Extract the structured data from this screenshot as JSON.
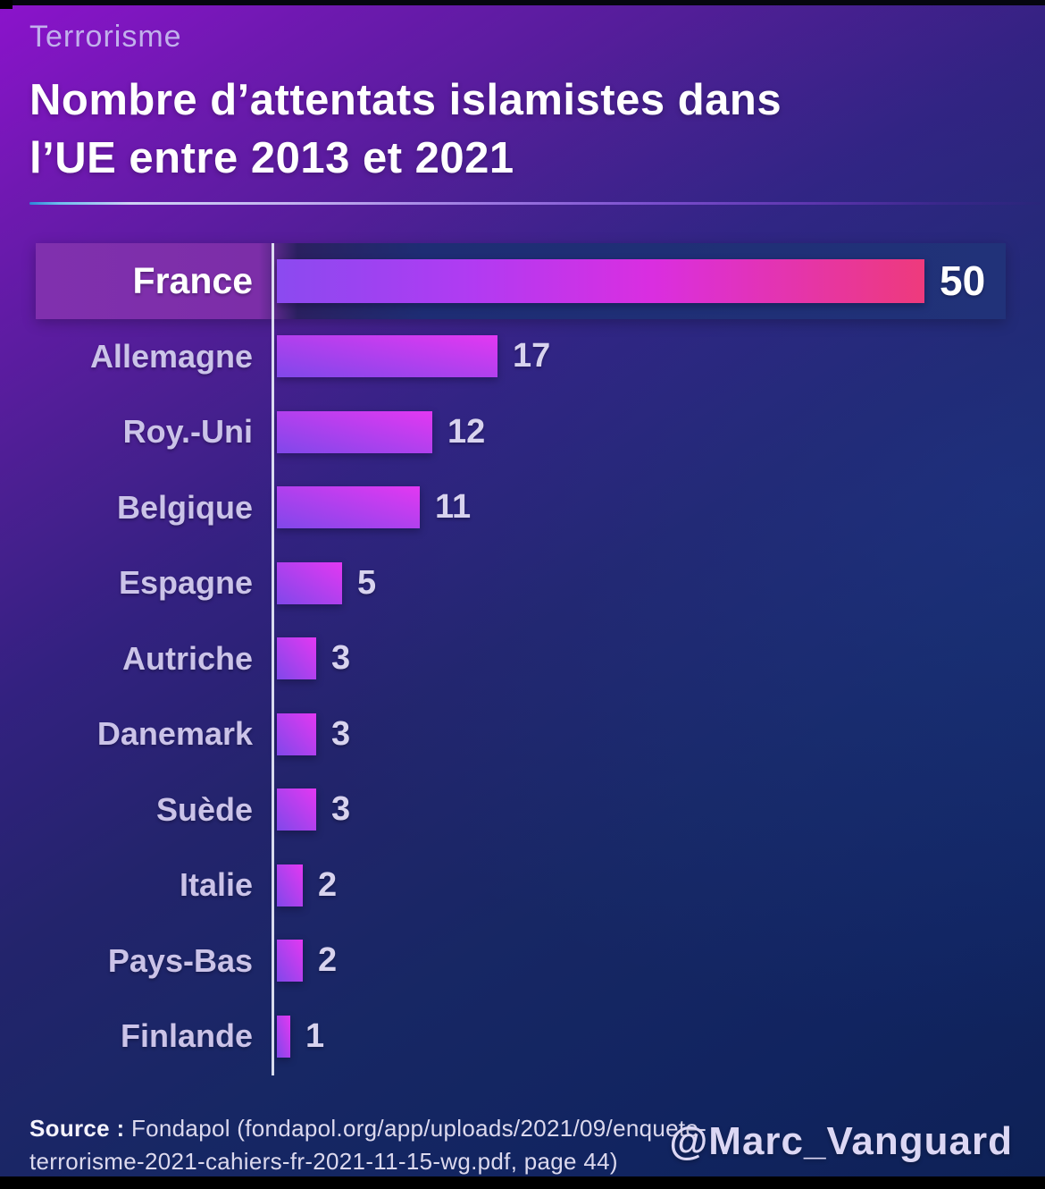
{
  "header": {
    "kicker": "Terrorisme",
    "title_line1": "Nombre d’attentats islamistes dans",
    "title_line2": "l’UE entre 2013 et 2021"
  },
  "chart_data": {
    "type": "bar",
    "orientation": "horizontal",
    "title": "Nombre d’attentats islamistes dans l’UE entre 2013 et 2021",
    "categories": [
      "France",
      "Allemagne",
      "Roy.-Uni",
      "Belgique",
      "Espagne",
      "Autriche",
      "Danemark",
      "Suède",
      "Italie",
      "Pays-Bas",
      "Finlande"
    ],
    "values": [
      50,
      17,
      12,
      11,
      5,
      3,
      3,
      3,
      2,
      2,
      1
    ],
    "xlim": [
      0,
      50
    ],
    "highlighted_category": "France",
    "grid": false,
    "legend": false,
    "colors": {
      "bar_gradient_start": "#8048ea",
      "bar_gradient_end": "#e338f2",
      "highlight_bar_gradient": [
        "#8b4af0",
        "#da2ee0",
        "#ee3a7c"
      ],
      "highlight_band_purple": "#7c2ea8",
      "highlight_band_navy": "#1e2d74",
      "axis_line": "#e8ecf8",
      "label_color": "#cbc3e8",
      "background_purple": "#8c13cc",
      "background_navy": "#0e2156"
    }
  },
  "footer": {
    "source_bold": "Source :",
    "source_line1": "Fondapol (fondapol.org/app/uploads/2021/09/enquete-",
    "source_line2": "terrorisme-2021-cahiers-fr-2021-11-15-wg.pdf, page 44)",
    "handle": "@Marc_Vanguard"
  }
}
